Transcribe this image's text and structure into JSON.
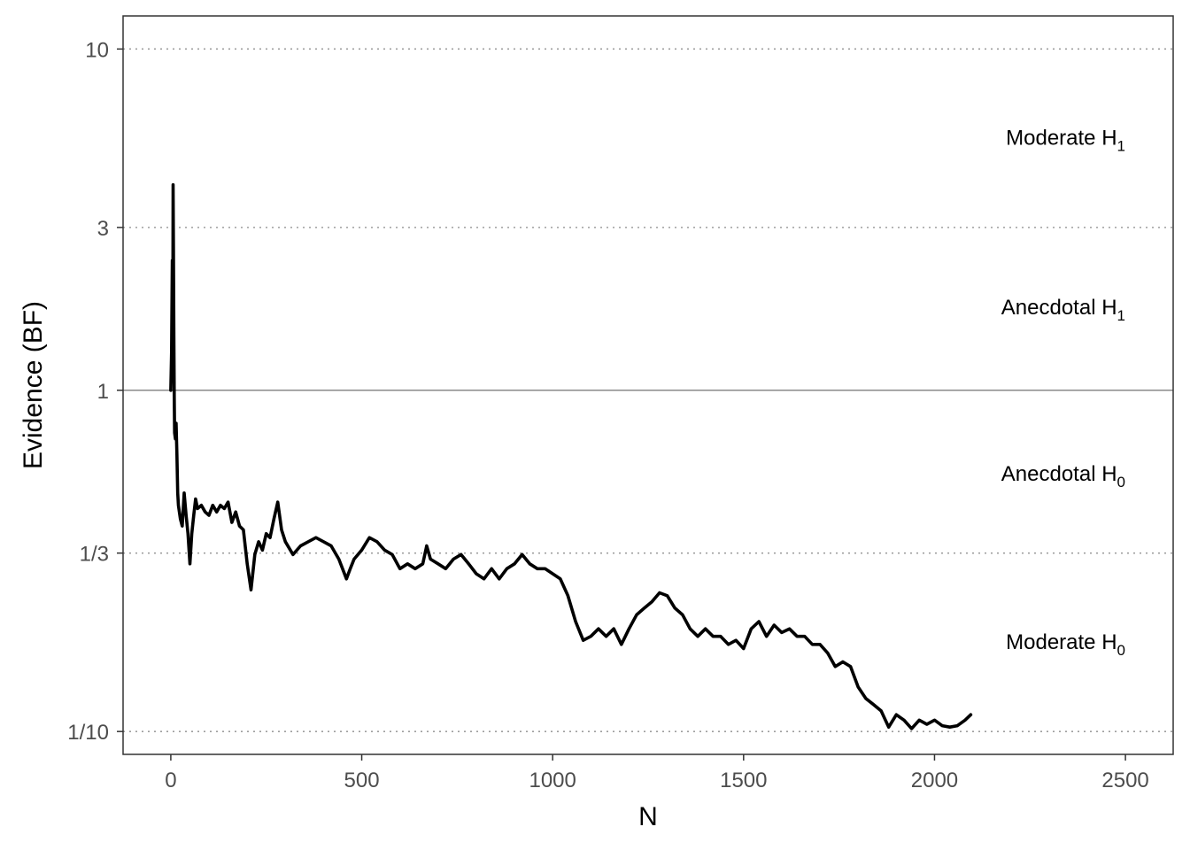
{
  "chart_data": {
    "type": "line",
    "xlabel": "N",
    "ylabel": "Evidence (BF)",
    "y_scale": "log",
    "xlim": [
      -125,
      2625
    ],
    "ylim": [
      0.0857,
      12.5
    ],
    "grid": "dotted horizontal lines at 10, 3, 1/3 and 1/10; solid line at 1",
    "x_ticks": [
      {
        "value": 0,
        "label": "0"
      },
      {
        "value": 500,
        "label": "500"
      },
      {
        "value": 1000,
        "label": "1000"
      },
      {
        "value": 1500,
        "label": "1500"
      },
      {
        "value": 2000,
        "label": "2000"
      },
      {
        "value": 2500,
        "label": "2500"
      }
    ],
    "y_ticks": [
      {
        "value": 10,
        "label": "10"
      },
      {
        "value": 3,
        "label": "3"
      },
      {
        "value": 1,
        "label": "1"
      },
      {
        "value": 0.3333,
        "label": "1/3"
      },
      {
        "value": 0.1,
        "label": "1/10"
      }
    ],
    "reference_lines": [
      {
        "value": 10,
        "style": "dotted"
      },
      {
        "value": 3,
        "style": "dotted"
      },
      {
        "value": 1,
        "style": "solid"
      },
      {
        "value": 0.3333,
        "style": "dotted"
      },
      {
        "value": 0.1,
        "style": "dotted"
      }
    ],
    "annotations": [
      {
        "text": "Moderate H",
        "subscript": "1",
        "y": 5.5
      },
      {
        "text": "Anecdotal H",
        "subscript": "1",
        "y": 1.75
      },
      {
        "text": "Anecdotal H",
        "subscript": "0",
        "y": 0.57
      },
      {
        "text": "Moderate H",
        "subscript": "0",
        "y": 0.183
      }
    ],
    "series": [
      {
        "x": [
          0,
          2,
          4,
          5,
          6,
          7,
          8,
          9,
          10,
          12,
          14,
          16,
          18,
          20,
          25,
          30,
          35,
          40,
          45,
          50,
          55,
          60,
          65,
          70,
          80,
          90,
          100,
          110,
          120,
          130,
          140,
          150,
          160,
          170,
          180,
          190,
          200,
          210,
          220,
          230,
          240,
          250,
          260,
          270,
          280,
          290,
          300,
          320,
          340,
          360,
          380,
          400,
          420,
          440,
          460,
          470,
          480,
          500,
          520,
          540,
          560,
          580,
          600,
          620,
          640,
          660,
          670,
          680,
          700,
          720,
          740,
          760,
          780,
          800,
          820,
          840,
          860,
          880,
          900,
          920,
          940,
          960,
          980,
          1000,
          1020,
          1040,
          1060,
          1080,
          1100,
          1120,
          1140,
          1160,
          1180,
          1200,
          1220,
          1240,
          1260,
          1280,
          1300,
          1320,
          1340,
          1360,
          1380,
          1400,
          1420,
          1440,
          1460,
          1480,
          1500,
          1520,
          1540,
          1560,
          1580,
          1600,
          1620,
          1640,
          1660,
          1680,
          1700,
          1720,
          1740,
          1760,
          1780,
          1800,
          1820,
          1840,
          1860,
          1880,
          1900,
          1920,
          1940,
          1960,
          1980,
          2000,
          2020,
          2040,
          2060,
          2080,
          2095
        ],
        "y": [
          1.0,
          1.3,
          2.4,
          1.2,
          4.0,
          2.6,
          1.4,
          0.95,
          0.75,
          0.72,
          0.8,
          0.65,
          0.5,
          0.46,
          0.42,
          0.4,
          0.5,
          0.43,
          0.38,
          0.31,
          0.38,
          0.43,
          0.48,
          0.45,
          0.46,
          0.44,
          0.43,
          0.46,
          0.44,
          0.46,
          0.45,
          0.47,
          0.41,
          0.44,
          0.4,
          0.39,
          0.31,
          0.26,
          0.33,
          0.36,
          0.34,
          0.38,
          0.37,
          0.42,
          0.47,
          0.39,
          0.36,
          0.33,
          0.35,
          0.36,
          0.37,
          0.36,
          0.35,
          0.32,
          0.28,
          0.3,
          0.32,
          0.34,
          0.37,
          0.36,
          0.34,
          0.33,
          0.3,
          0.31,
          0.3,
          0.31,
          0.35,
          0.32,
          0.31,
          0.3,
          0.32,
          0.33,
          0.31,
          0.29,
          0.28,
          0.3,
          0.28,
          0.3,
          0.31,
          0.33,
          0.31,
          0.3,
          0.3,
          0.29,
          0.28,
          0.25,
          0.21,
          0.185,
          0.19,
          0.2,
          0.19,
          0.2,
          0.18,
          0.2,
          0.22,
          0.23,
          0.24,
          0.255,
          0.25,
          0.23,
          0.22,
          0.2,
          0.19,
          0.2,
          0.19,
          0.19,
          0.18,
          0.185,
          0.175,
          0.2,
          0.21,
          0.19,
          0.205,
          0.195,
          0.2,
          0.19,
          0.19,
          0.18,
          0.18,
          0.17,
          0.155,
          0.16,
          0.155,
          0.135,
          0.125,
          0.12,
          0.115,
          0.103,
          0.112,
          0.108,
          0.102,
          0.108,
          0.105,
          0.108,
          0.104,
          0.103,
          0.104,
          0.108,
          0.112
        ]
      }
    ]
  }
}
